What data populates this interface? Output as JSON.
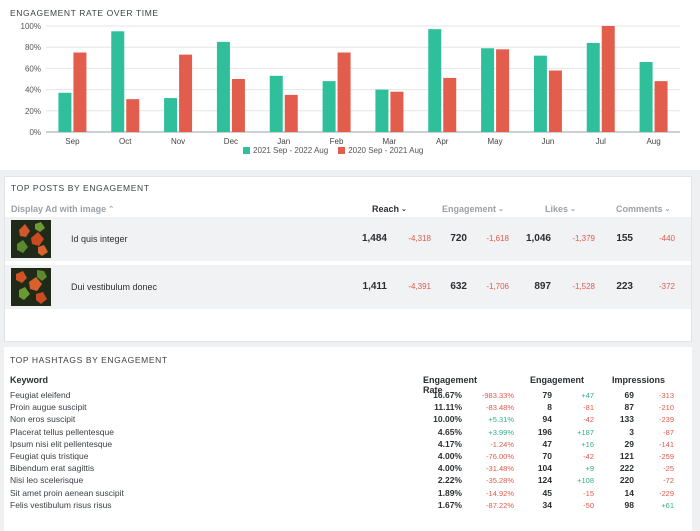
{
  "colors": {
    "green": "#2fbf9b",
    "red": "#e35d4d"
  },
  "engagement_section": {
    "title": "ENGAGEMENT RATE OVER TIME"
  },
  "chart_data": {
    "type": "bar",
    "title": "ENGAGEMENT RATE OVER TIME",
    "categories": [
      "Sep",
      "Oct",
      "Nov",
      "Dec",
      "Jan",
      "Feb",
      "Mar",
      "Apr",
      "May",
      "Jun",
      "Jul",
      "Aug"
    ],
    "series": [
      {
        "name": "2021 Sep - 2022 Aug",
        "values": [
          37,
          95,
          32,
          85,
          53,
          48,
          40,
          97,
          79,
          72,
          84,
          66
        ]
      },
      {
        "name": "2020 Sep - 2021 Aug",
        "values": [
          75,
          31,
          73,
          50,
          35,
          75,
          38,
          51,
          78,
          58,
          100,
          48
        ]
      }
    ],
    "ytick_labels": [
      "0%",
      "20%",
      "40%",
      "60%",
      "80%",
      "100%"
    ],
    "ylim": [
      0,
      100
    ],
    "xlabel": "",
    "ylabel": "",
    "grid": true,
    "legend_position": "bottom"
  },
  "posts": {
    "title": "TOP POSTS BY ENGAGEMENT",
    "header": {
      "display": "Display Ad with image",
      "reach": "Reach",
      "engagement": "Engagement",
      "likes": "Likes",
      "comments": "Comments"
    },
    "rows": [
      {
        "title": "Id quis integer",
        "reach": "1,484",
        "reach_delta": "-4,318",
        "engagement": "720",
        "engagement_delta": "-1,618",
        "likes": "1,046",
        "likes_delta": "-1,379",
        "comments": "155",
        "comments_delta": "-440"
      },
      {
        "title": "Dui vestibulum donec",
        "reach": "1,411",
        "reach_delta": "-4,391",
        "engagement": "632",
        "engagement_delta": "-1,706",
        "likes": "897",
        "likes_delta": "-1,528",
        "comments": "223",
        "comments_delta": "-372"
      }
    ]
  },
  "hashtags": {
    "title": "TOP HASHTAGS BY ENGAGEMENT",
    "header": {
      "keyword": "Keyword",
      "rate": "Engagement Rate",
      "engagement": "Engagement",
      "impressions": "Impressions"
    },
    "rows": [
      {
        "keyword": "Feugiat eleifend",
        "rate": "16.67%",
        "rate_delta": "-983.33%",
        "engagement": "79",
        "engagement_delta": "+47",
        "impressions": "69",
        "impressions_delta": "-313"
      },
      {
        "keyword": "Proin augue suscipit",
        "rate": "11.11%",
        "rate_delta": "-83.48%",
        "engagement": "8",
        "engagement_delta": "-81",
        "impressions": "87",
        "impressions_delta": "-210"
      },
      {
        "keyword": "Non eros suscipit",
        "rate": "10.00%",
        "rate_delta": "+5.31%",
        "engagement": "94",
        "engagement_delta": "-42",
        "impressions": "133",
        "impressions_delta": "-239"
      },
      {
        "keyword": "Placerat tellus pellentesque",
        "rate": "4.65%",
        "rate_delta": "+3.99%",
        "engagement": "196",
        "engagement_delta": "+187",
        "impressions": "3",
        "impressions_delta": "-87"
      },
      {
        "keyword": "Ipsum nisi elit pellentesque",
        "rate": "4.17%",
        "rate_delta": "-1.24%",
        "engagement": "47",
        "engagement_delta": "+16",
        "impressions": "29",
        "impressions_delta": "-141"
      },
      {
        "keyword": "Feugiat quis tristique",
        "rate": "4.00%",
        "rate_delta": "-76.00%",
        "engagement": "70",
        "engagement_delta": "-42",
        "impressions": "121",
        "impressions_delta": "-259"
      },
      {
        "keyword": "Bibendum erat sagittis",
        "rate": "4.00%",
        "rate_delta": "-31.48%",
        "engagement": "104",
        "engagement_delta": "+9",
        "impressions": "222",
        "impressions_delta": "-25"
      },
      {
        "keyword": "Nisi leo scelerisque",
        "rate": "2.22%",
        "rate_delta": "-35.28%",
        "engagement": "124",
        "engagement_delta": "+108",
        "impressions": "220",
        "impressions_delta": "-72"
      },
      {
        "keyword": "Sit amet proin aenean suscipit",
        "rate": "1.89%",
        "rate_delta": "-14.92%",
        "engagement": "45",
        "engagement_delta": "-15",
        "impressions": "14",
        "impressions_delta": "-229"
      },
      {
        "keyword": "Felis vestibulum risus risus",
        "rate": "1.67%",
        "rate_delta": "-87.22%",
        "engagement": "34",
        "engagement_delta": "-50",
        "impressions": "98",
        "impressions_delta": "+61"
      }
    ]
  }
}
